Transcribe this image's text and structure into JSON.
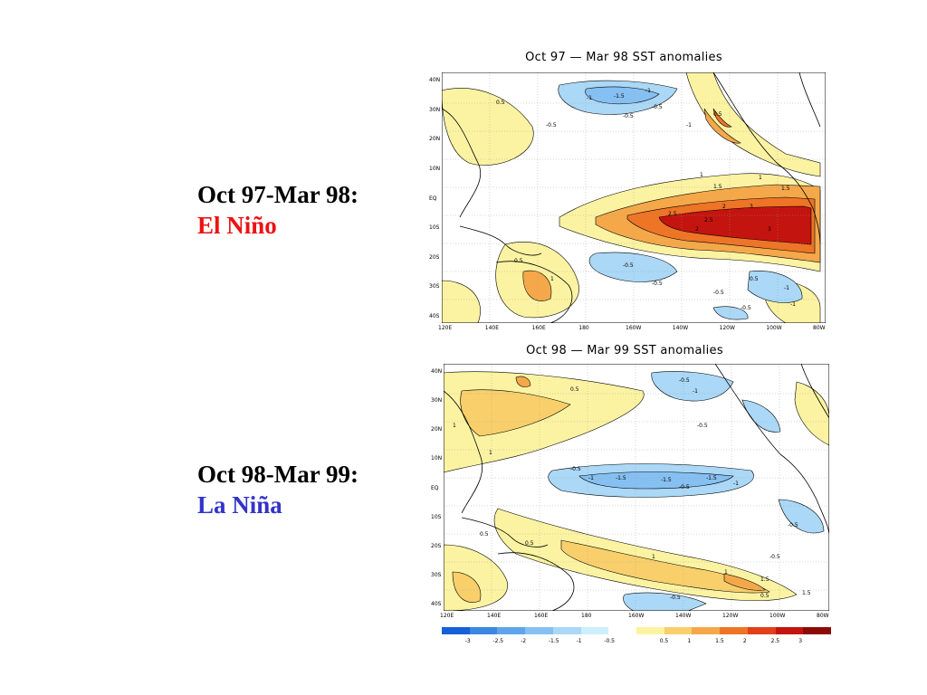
{
  "captions": [
    {
      "period": "Oct 97-Mar 98:",
      "phase": "El Niño",
      "phase_color": "#ee1111"
    },
    {
      "period": "Oct 98-Mar 99:",
      "phase": "La Niña",
      "phase_color": "#3333cc"
    }
  ],
  "maps": [
    {
      "title": "Oct 97  —  Mar 98 SST anomalies",
      "lat_ticks": [
        "40N",
        "30N",
        "20N",
        "10N",
        "EQ",
        "10S",
        "20S",
        "30S",
        "40S"
      ],
      "lon_ticks": [
        "120E",
        "140E",
        "160E",
        "180",
        "160W",
        "140W",
        "120W",
        "100W",
        "80W"
      ],
      "contour_labels": [
        "-1",
        "-1.5",
        "-1",
        "-0.5",
        "0.5",
        "-0.5",
        "-1",
        "0.5",
        "-0.5",
        "1",
        "1.5",
        "1",
        "1.5",
        "2",
        "2.5",
        "3",
        "2",
        "2.5",
        "3",
        "1",
        "0.5",
        "-1",
        "0.5",
        "-0.5",
        "-0.5",
        "-0.5",
        "-1",
        "-0.5"
      ]
    },
    {
      "title": "Oct 98  —  Mar 99 SST anomalies",
      "lat_ticks": [
        "40N",
        "30N",
        "20N",
        "10N",
        "EQ",
        "10S",
        "20S",
        "30S",
        "40S"
      ],
      "lon_ticks": [
        "120E",
        "140E",
        "160E",
        "180",
        "160W",
        "140W",
        "120W",
        "100W",
        "80W"
      ],
      "contour_labels": [
        "1",
        "0.5",
        "-0.5",
        "-1",
        "-0.5",
        "1",
        "0.5",
        "-0.5",
        "-1",
        "-1.5",
        "-1.5",
        "-1.5",
        "-1",
        "-0.5",
        "0.5",
        "1",
        "1",
        "1.5",
        "-0.5",
        "-0.5",
        "0.5",
        "-0.5",
        "1.5"
      ]
    }
  ],
  "colorbar": {
    "labels": [
      "-3",
      "-2.5",
      "-2",
      "-1.5",
      "-1",
      "-0.5",
      "0.5",
      "1",
      "1.5",
      "2",
      "2.5",
      "3"
    ],
    "colors": [
      "#1560d6",
      "#3a86e0",
      "#5fa4ea",
      "#86c0f2",
      "#aad8f6",
      "#cdeffc",
      "#ffffff",
      "#fbf3a2",
      "#f8cf6b",
      "#f5a84a",
      "#ee7426",
      "#e0401a",
      "#c4140f",
      "#8c0a06"
    ]
  }
}
